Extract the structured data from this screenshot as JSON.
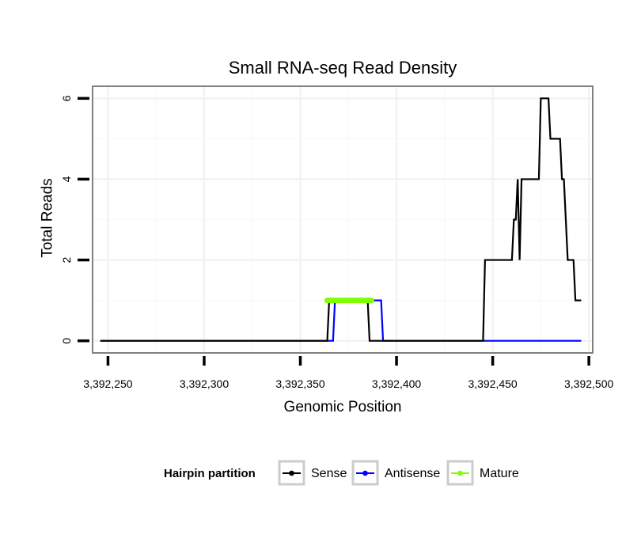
{
  "chart_data": {
    "type": "line",
    "title": "Small RNA-seq Read Density",
    "xlabel": "Genomic Position",
    "ylabel": "Total Reads",
    "xlim": [
      3392242,
      3392502
    ],
    "ylim": [
      -0.3,
      6.3
    ],
    "x_ticks": [
      3392250,
      3392300,
      3392350,
      3392400,
      3392450,
      3392500
    ],
    "x_tick_labels": [
      "3,392,250",
      "3,392,300",
      "3,392,350",
      "3,392,400",
      "3,392,450",
      "3,392,500"
    ],
    "y_ticks": [
      0,
      2,
      4,
      6
    ],
    "y_tick_labels": [
      "0",
      "2",
      "4",
      "6"
    ],
    "grid": true,
    "legend": {
      "title": "Hairpin partition",
      "position": "bottom",
      "entries": [
        "Sense",
        "Antisense",
        "Mature"
      ]
    },
    "series": [
      {
        "name": "Sense",
        "color": "#000000",
        "x": [
          3392246,
          3392364,
          3392365,
          3392368,
          3392369,
          3392385,
          3392386,
          3392445,
          3392446,
          3392460,
          3392461,
          3392462,
          3392463,
          3392464,
          3392465,
          3392474,
          3392475,
          3392479,
          3392480,
          3392485,
          3392486,
          3392487,
          3392489,
          3392492,
          3392493,
          3392496
        ],
        "y": [
          0,
          0,
          1,
          1,
          1,
          1,
          0,
          0,
          2,
          2,
          3,
          3,
          4,
          2,
          4,
          4,
          6,
          6,
          5,
          5,
          4,
          4,
          2,
          2,
          1,
          1
        ]
      },
      {
        "name": "Antisense",
        "color": "#0000ff",
        "x": [
          3392246,
          3392367,
          3392368,
          3392392,
          3392393,
          3392496
        ],
        "y": [
          0,
          0,
          1,
          1,
          0,
          0
        ]
      },
      {
        "name": "Mature",
        "color": "#7fff00",
        "x": [
          3392364,
          3392387
        ],
        "y": [
          1,
          1
        ]
      }
    ]
  }
}
